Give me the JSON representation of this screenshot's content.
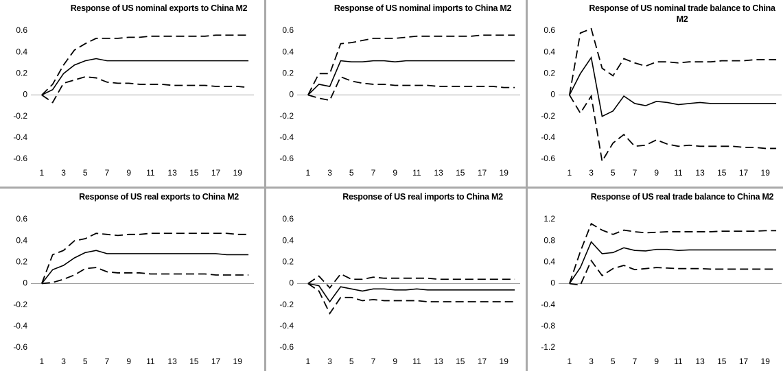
{
  "chart_data": [
    {
      "type": "line",
      "title": "Response of US nominal exports to China M2",
      "x": [
        1,
        2,
        3,
        4,
        5,
        6,
        7,
        8,
        9,
        10,
        11,
        12,
        13,
        14,
        15,
        16,
        17,
        18,
        19,
        20
      ],
      "xlim": [
        0,
        20.5
      ],
      "xticks": [
        1,
        3,
        5,
        7,
        9,
        11,
        13,
        15,
        17,
        19
      ],
      "ylim": [
        -0.6,
        0.6
      ],
      "yticks": [
        -0.6,
        -0.4,
        -0.2,
        0,
        0.2,
        0.4,
        0.6
      ],
      "series": [
        {
          "color": "#000000",
          "style": "solid",
          "values": [
            0,
            0.05,
            0.2,
            0.28,
            0.32,
            0.34,
            0.32,
            0.32,
            0.32,
            0.32,
            0.32,
            0.32,
            0.32,
            0.32,
            0.32,
            0.32,
            0.32,
            0.32,
            0.32,
            0.32
          ]
        },
        {
          "color": "#000000",
          "style": "dashed",
          "values": [
            0,
            0.1,
            0.28,
            0.42,
            0.48,
            0.53,
            0.53,
            0.53,
            0.54,
            0.54,
            0.55,
            0.55,
            0.55,
            0.55,
            0.55,
            0.55,
            0.56,
            0.56,
            0.56,
            0.56
          ]
        },
        {
          "color": "#000000",
          "style": "dashed",
          "values": [
            0,
            -0.07,
            0.11,
            0.14,
            0.17,
            0.16,
            0.12,
            0.11,
            0.11,
            0.1,
            0.1,
            0.1,
            0.09,
            0.09,
            0.09,
            0.09,
            0.08,
            0.08,
            0.08,
            0.07
          ]
        }
      ]
    },
    {
      "type": "line",
      "title": "Response of US nominal imports to China M2",
      "x": [
        1,
        2,
        3,
        4,
        5,
        6,
        7,
        8,
        9,
        10,
        11,
        12,
        13,
        14,
        15,
        16,
        17,
        18,
        19,
        20
      ],
      "xlim": [
        0,
        20.5
      ],
      "xticks": [
        1,
        3,
        5,
        7,
        9,
        11,
        13,
        15,
        17,
        19
      ],
      "ylim": [
        -0.6,
        0.6
      ],
      "yticks": [
        -0.6,
        -0.4,
        -0.2,
        0,
        0.2,
        0.4,
        0.6
      ],
      "series": [
        {
          "color": "#000000",
          "style": "solid",
          "values": [
            0,
            0.1,
            0.08,
            0.32,
            0.31,
            0.31,
            0.32,
            0.32,
            0.31,
            0.32,
            0.32,
            0.32,
            0.32,
            0.32,
            0.32,
            0.32,
            0.32,
            0.32,
            0.32,
            0.32
          ]
        },
        {
          "color": "#000000",
          "style": "dashed",
          "values": [
            0,
            0.2,
            0.2,
            0.48,
            0.49,
            0.51,
            0.53,
            0.53,
            0.53,
            0.54,
            0.55,
            0.55,
            0.55,
            0.55,
            0.55,
            0.55,
            0.56,
            0.56,
            0.56,
            0.56
          ]
        },
        {
          "color": "#000000",
          "style": "dashed",
          "values": [
            0,
            -0.03,
            -0.05,
            0.17,
            0.13,
            0.11,
            0.1,
            0.1,
            0.09,
            0.09,
            0.09,
            0.09,
            0.08,
            0.08,
            0.08,
            0.08,
            0.08,
            0.08,
            0.07,
            0.07
          ]
        }
      ]
    },
    {
      "type": "line",
      "title": "Response of US nominal trade balance to China M2",
      "x": [
        1,
        2,
        3,
        4,
        5,
        6,
        7,
        8,
        9,
        10,
        11,
        12,
        13,
        14,
        15,
        16,
        17,
        18,
        19,
        20
      ],
      "xlim": [
        0,
        20.5
      ],
      "xticks": [
        1,
        3,
        5,
        7,
        9,
        11,
        13,
        15,
        17,
        19
      ],
      "ylim": [
        -0.6,
        0.6
      ],
      "yticks": [
        -0.6,
        -0.4,
        -0.2,
        0,
        0.2,
        0.4,
        0.6
      ],
      "series": [
        {
          "color": "#000000",
          "style": "solid",
          "values": [
            0,
            0.2,
            0.35,
            -0.2,
            -0.15,
            -0.01,
            -0.08,
            -0.1,
            -0.06,
            -0.07,
            -0.09,
            -0.08,
            -0.07,
            -0.08,
            -0.08,
            -0.08,
            -0.08,
            -0.08,
            -0.08,
            -0.08
          ]
        },
        {
          "color": "#000000",
          "style": "dashed",
          "values": [
            0,
            0.58,
            0.62,
            0.25,
            0.18,
            0.34,
            0.3,
            0.27,
            0.31,
            0.31,
            0.3,
            0.31,
            0.31,
            0.31,
            0.32,
            0.32,
            0.32,
            0.33,
            0.33,
            0.33
          ]
        },
        {
          "color": "#000000",
          "style": "dashed",
          "values": [
            0,
            -0.17,
            -0.01,
            -0.62,
            -0.45,
            -0.37,
            -0.48,
            -0.47,
            -0.42,
            -0.46,
            -0.48,
            -0.47,
            -0.48,
            -0.48,
            -0.48,
            -0.48,
            -0.49,
            -0.49,
            -0.5,
            -0.5
          ]
        }
      ]
    },
    {
      "type": "line",
      "title": "Response of US real exports to China M2",
      "x": [
        1,
        2,
        3,
        4,
        5,
        6,
        7,
        8,
        9,
        10,
        11,
        12,
        13,
        14,
        15,
        16,
        17,
        18,
        19,
        20
      ],
      "xlim": [
        0,
        20.5
      ],
      "xticks": [
        1,
        3,
        5,
        7,
        9,
        11,
        13,
        15,
        17,
        19
      ],
      "ylim": [
        -0.6,
        0.6
      ],
      "yticks": [
        -0.6,
        -0.4,
        -0.2,
        0,
        0.2,
        0.4,
        0.6
      ],
      "series": [
        {
          "color": "#000000",
          "style": "solid",
          "values": [
            0,
            0.13,
            0.17,
            0.24,
            0.29,
            0.31,
            0.28,
            0.28,
            0.28,
            0.28,
            0.28,
            0.28,
            0.28,
            0.28,
            0.28,
            0.28,
            0.28,
            0.27,
            0.27,
            0.27
          ]
        },
        {
          "color": "#000000",
          "style": "dashed",
          "values": [
            0,
            0.27,
            0.31,
            0.4,
            0.42,
            0.47,
            0.46,
            0.45,
            0.46,
            0.46,
            0.47,
            0.47,
            0.47,
            0.47,
            0.47,
            0.47,
            0.47,
            0.47,
            0.46,
            0.46
          ]
        },
        {
          "color": "#000000",
          "style": "dashed",
          "values": [
            0,
            0.01,
            0.04,
            0.08,
            0.14,
            0.15,
            0.11,
            0.1,
            0.1,
            0.1,
            0.09,
            0.09,
            0.09,
            0.09,
            0.09,
            0.09,
            0.08,
            0.08,
            0.08,
            0.08
          ]
        }
      ]
    },
    {
      "type": "line",
      "title": "Response of US real imports to China M2",
      "x": [
        1,
        2,
        3,
        4,
        5,
        6,
        7,
        8,
        9,
        10,
        11,
        12,
        13,
        14,
        15,
        16,
        17,
        18,
        19,
        20
      ],
      "xlim": [
        0,
        20.5
      ],
      "xticks": [
        1,
        3,
        5,
        7,
        9,
        11,
        13,
        15,
        17,
        19
      ],
      "ylim": [
        -0.6,
        0.6
      ],
      "yticks": [
        -0.6,
        -0.4,
        -0.2,
        0,
        0.2,
        0.4,
        0.6
      ],
      "series": [
        {
          "color": "#000000",
          "style": "solid",
          "values": [
            0,
            -0.02,
            -0.17,
            -0.03,
            -0.05,
            -0.07,
            -0.05,
            -0.05,
            -0.06,
            -0.06,
            -0.05,
            -0.06,
            -0.06,
            -0.06,
            -0.06,
            -0.06,
            -0.06,
            -0.06,
            -0.06,
            -0.06
          ]
        },
        {
          "color": "#000000",
          "style": "dashed",
          "values": [
            0,
            0.07,
            -0.04,
            0.09,
            0.04,
            0.04,
            0.06,
            0.05,
            0.05,
            0.05,
            0.05,
            0.05,
            0.04,
            0.04,
            0.04,
            0.04,
            0.04,
            0.04,
            0.04,
            0.04
          ]
        },
        {
          "color": "#000000",
          "style": "dashed",
          "values": [
            0,
            -0.07,
            -0.28,
            -0.13,
            -0.13,
            -0.16,
            -0.15,
            -0.16,
            -0.16,
            -0.16,
            -0.16,
            -0.17,
            -0.17,
            -0.17,
            -0.17,
            -0.17,
            -0.17,
            -0.17,
            -0.17,
            -0.17
          ]
        }
      ]
    },
    {
      "type": "line",
      "title": "Response of US real trade balance to China M2",
      "x": [
        1,
        2,
        3,
        4,
        5,
        6,
        7,
        8,
        9,
        10,
        11,
        12,
        13,
        14,
        15,
        16,
        17,
        18,
        19,
        20
      ],
      "xlim": [
        0,
        20.5
      ],
      "xticks": [
        1,
        3,
        5,
        7,
        9,
        11,
        13,
        15,
        17,
        19
      ],
      "ylim": [
        -1.2,
        1.2
      ],
      "yticks": [
        -1.2,
        -0.8,
        -0.4,
        0,
        0.4,
        0.8,
        1.2
      ],
      "series": [
        {
          "color": "#000000",
          "style": "solid",
          "values": [
            0,
            0.3,
            0.78,
            0.56,
            0.58,
            0.67,
            0.62,
            0.61,
            0.64,
            0.64,
            0.62,
            0.63,
            0.63,
            0.63,
            0.63,
            0.63,
            0.63,
            0.63,
            0.63,
            0.63
          ]
        },
        {
          "color": "#000000",
          "style": "dashed",
          "values": [
            0,
            0.6,
            1.12,
            1.0,
            0.92,
            1.0,
            0.97,
            0.95,
            0.96,
            0.97,
            0.97,
            0.97,
            0.97,
            0.97,
            0.98,
            0.98,
            0.98,
            0.98,
            0.99,
            0.99
          ]
        },
        {
          "color": "#000000",
          "style": "dashed",
          "values": [
            0,
            -0.03,
            0.43,
            0.15,
            0.28,
            0.34,
            0.26,
            0.28,
            0.3,
            0.29,
            0.28,
            0.28,
            0.28,
            0.27,
            0.27,
            0.27,
            0.27,
            0.27,
            0.27,
            0.27
          ]
        }
      ]
    }
  ]
}
